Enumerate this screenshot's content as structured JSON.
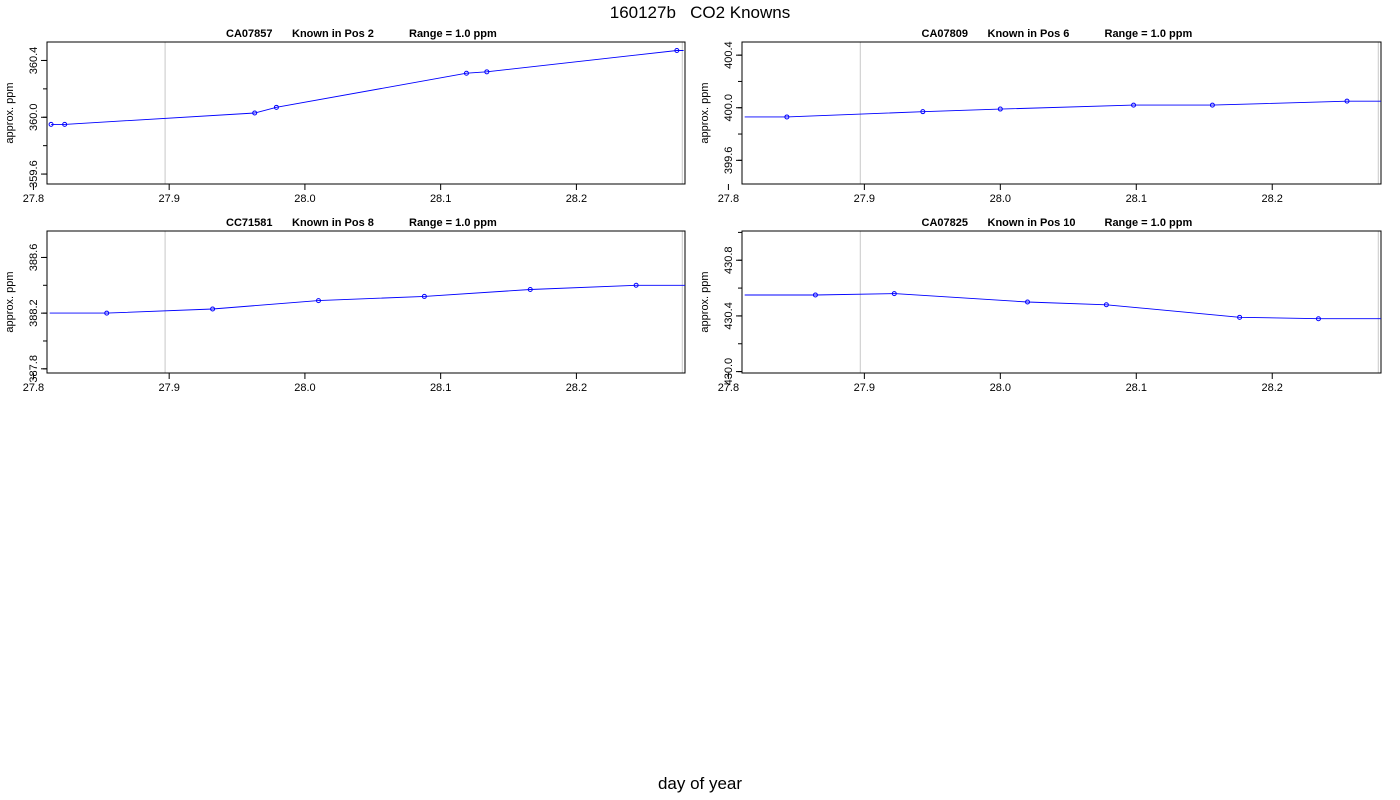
{
  "title": "160127b   CO2 Knowns",
  "xlabel": "day of year",
  "colors": {
    "series": "#0000ff",
    "vline": "#c8c8c8",
    "axis": "#000000"
  },
  "chart_data": [
    {
      "type": "line",
      "panel_title": {
        "id": "CA07857",
        "known": "Known in Pos 2",
        "range": "Range = 1.0 ppm"
      },
      "ylabel": "approx. ppm",
      "xlim": [
        27.81,
        28.28
      ],
      "ylim": [
        359.53,
        360.53
      ],
      "xticks": [
        "27.8",
        "27.9",
        "28.0",
        "28.1",
        "28.2"
      ],
      "yticks": [
        "359.6",
        "360.0",
        "360.4"
      ],
      "vlines": [
        27.897,
        28.278
      ],
      "x": [
        27.813,
        27.823,
        27.963,
        27.979,
        28.119,
        28.134,
        28.274
      ],
      "y": [
        359.95,
        359.95,
        360.03,
        360.07,
        360.31,
        360.32,
        360.47
      ],
      "line_end_x": 28.279
    },
    {
      "type": "line",
      "panel_title": {
        "id": "CA07809",
        "known": "Known in Pos 6",
        "range": "Range = 1.0 ppm"
      },
      "ylabel": "approx. ppm",
      "xlim": [
        27.81,
        28.28
      ],
      "ylim": [
        399.42,
        400.5
      ],
      "xticks": [
        "27.8",
        "27.9",
        "28.0",
        "28.1",
        "28.2"
      ],
      "yticks": [
        "399.6",
        "400.0",
        "400.4"
      ],
      "vlines": [
        27.897,
        28.278
      ],
      "x": [
        27.843,
        27.943,
        28.0,
        28.098,
        28.156,
        28.255
      ],
      "y": [
        399.93,
        399.97,
        399.99,
        400.02,
        400.02,
        400.05
      ],
      "line_start_x": 27.812,
      "line_end_x": 28.28
    },
    {
      "type": "line",
      "panel_title": {
        "id": "CC71581",
        "known": "Known in Pos 8",
        "range": "Range = 1.0 ppm"
      },
      "ylabel": "approx. ppm",
      "xlim": [
        27.81,
        28.28
      ],
      "ylim": [
        387.77,
        388.79
      ],
      "xticks": [
        "27.8",
        "27.9",
        "28.0",
        "28.1",
        "28.2"
      ],
      "yticks": [
        "387.8",
        "388.2",
        "388.6"
      ],
      "vlines": [
        27.897,
        28.278
      ],
      "x": [
        27.854,
        27.932,
        28.01,
        28.088,
        28.166,
        28.244
      ],
      "y": [
        388.2,
        388.23,
        388.29,
        388.32,
        388.37,
        388.4
      ],
      "line_start_x": 27.812,
      "line_end_x": 28.28
    },
    {
      "type": "line",
      "panel_title": {
        "id": "CA07825",
        "known": "Known in Pos 10",
        "range": "Range = 1.0 ppm"
      },
      "ylabel": "approx. ppm",
      "xlim": [
        27.81,
        28.28
      ],
      "ylim": [
        429.99,
        431.01
      ],
      "xticks": [
        "27.8",
        "27.9",
        "28.0",
        "28.1",
        "28.2"
      ],
      "yticks": [
        "430.0",
        "430.4",
        "430.8"
      ],
      "vlines": [
        27.897,
        28.278
      ],
      "x": [
        27.864,
        27.922,
        28.02,
        28.078,
        28.176,
        28.234
      ],
      "y": [
        430.55,
        430.56,
        430.5,
        430.48,
        430.39,
        430.38
      ],
      "line_start_x": 27.812,
      "line_end_x": 28.28
    }
  ]
}
